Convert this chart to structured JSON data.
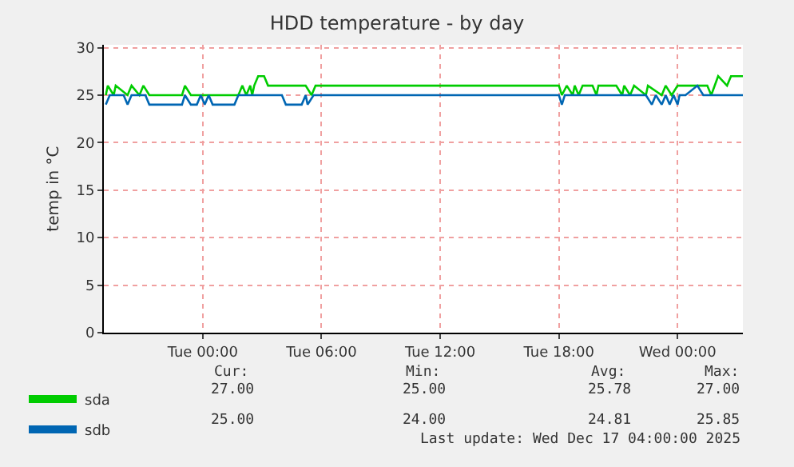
{
  "chart_data": {
    "type": "line",
    "title": "HDD temperature - by day",
    "ylabel": "temp in °C",
    "xlim": [
      "2025-12-15T19:00",
      "2025-12-17T03:18"
    ],
    "xticks": [
      {
        "value": "2025-12-16T00:00",
        "label": "Tue 00:00"
      },
      {
        "value": "2025-12-16T06:00",
        "label": "Tue 06:00"
      },
      {
        "value": "2025-12-16T12:00",
        "label": "Tue 12:00"
      },
      {
        "value": "2025-12-16T18:00",
        "label": "Tue 18:00"
      },
      {
        "value": "2025-12-17T00:00",
        "label": "Wed 00:00"
      }
    ],
    "ylim": [
      0,
      30.3
    ],
    "yticks": [
      0,
      5,
      10,
      15,
      20,
      25,
      30
    ],
    "grid": true,
    "legend": "bottom left",
    "series": [
      {
        "name": "sda",
        "color": "#00cc00",
        "x": [
          "2025-12-15T19:06",
          "2025-12-15T19:12",
          "2025-12-15T19:30",
          "2025-12-15T19:36",
          "2025-12-15T20:12",
          "2025-12-15T20:24",
          "2025-12-15T20:48",
          "2025-12-15T21:00",
          "2025-12-15T21:18",
          "2025-12-15T22:57",
          "2025-12-15T23:06",
          "2025-12-15T23:24",
          "2025-12-16T01:48",
          "2025-12-16T02:00",
          "2025-12-16T02:12",
          "2025-12-16T02:24",
          "2025-12-16T02:30",
          "2025-12-16T02:36",
          "2025-12-16T02:48",
          "2025-12-16T03:06",
          "2025-12-16T03:18",
          "2025-12-16T05:12",
          "2025-12-16T05:30",
          "2025-12-16T05:42",
          "2025-12-16T18:00",
          "2025-12-16T18:09",
          "2025-12-16T18:24",
          "2025-12-16T18:42",
          "2025-12-16T18:48",
          "2025-12-16T19:00",
          "2025-12-16T19:12",
          "2025-12-16T19:42",
          "2025-12-16T19:54",
          "2025-12-16T20:00",
          "2025-12-16T20:54",
          "2025-12-16T21:12",
          "2025-12-16T21:18",
          "2025-12-16T21:36",
          "2025-12-16T21:48",
          "2025-12-16T22:24",
          "2025-12-16T22:30",
          "2025-12-16T23:12",
          "2025-12-16T23:24",
          "2025-12-16T23:42",
          "2025-12-17T00:00",
          "2025-12-17T01:30",
          "2025-12-17T01:42",
          "2025-12-17T02:03",
          "2025-12-17T02:30",
          "2025-12-17T02:42",
          "2025-12-17T03:18"
        ],
        "values": [
          25,
          26,
          25,
          26,
          25,
          26,
          25,
          26,
          25,
          25,
          26,
          25,
          25,
          26,
          25,
          26,
          25,
          26,
          27,
          27,
          26,
          26,
          25,
          26,
          26,
          25,
          26,
          25,
          26,
          25,
          26,
          26,
          25,
          26,
          26,
          25,
          26,
          25,
          26,
          25,
          26,
          25,
          26,
          25,
          26,
          26,
          25,
          27,
          26,
          27,
          27
        ]
      },
      {
        "name": "sdb",
        "color": "#0066b3",
        "x": [
          "2025-12-15T19:06",
          "2025-12-15T19:18",
          "2025-12-15T20:00",
          "2025-12-15T20:12",
          "2025-12-15T20:24",
          "2025-12-15T21:06",
          "2025-12-15T21:18",
          "2025-12-15T22:57",
          "2025-12-15T23:06",
          "2025-12-15T23:24",
          "2025-12-15T23:42",
          "2025-12-15T23:54",
          "2025-12-16T00:06",
          "2025-12-16T00:18",
          "2025-12-16T00:30",
          "2025-12-16T01:36",
          "2025-12-16T01:48",
          "2025-12-16T04:00",
          "2025-12-16T04:12",
          "2025-12-16T05:00",
          "2025-12-16T05:12",
          "2025-12-16T05:18",
          "2025-12-16T05:36",
          "2025-12-16T18:00",
          "2025-12-16T18:09",
          "2025-12-16T18:18",
          "2025-12-16T22:24",
          "2025-12-16T22:42",
          "2025-12-16T22:54",
          "2025-12-16T23:12",
          "2025-12-16T23:24",
          "2025-12-16T23:36",
          "2025-12-16T23:48",
          "2025-12-17T00:00",
          "2025-12-17T00:06",
          "2025-12-17T00:24",
          "2025-12-17T01:00",
          "2025-12-17T01:18",
          "2025-12-17T03:18"
        ],
        "values": [
          24,
          25,
          25,
          24,
          25,
          25,
          24,
          24,
          25,
          24,
          24,
          25,
          24,
          25,
          24,
          24,
          25,
          25,
          24,
          24,
          25,
          24,
          25,
          25,
          24,
          25,
          25,
          24,
          25,
          24,
          25,
          24,
          25,
          24,
          25,
          25,
          26,
          25,
          25
        ]
      }
    ],
    "annotations": [
      "Cur:",
      "Min:",
      "Avg:",
      "Max:",
      "27.00",
      "25.00",
      "25.78",
      "27.00",
      "25.00",
      "24.00",
      "24.81",
      "25.85",
      "Last update: Wed Dec 17 04:00:00 2025"
    ]
  }
}
